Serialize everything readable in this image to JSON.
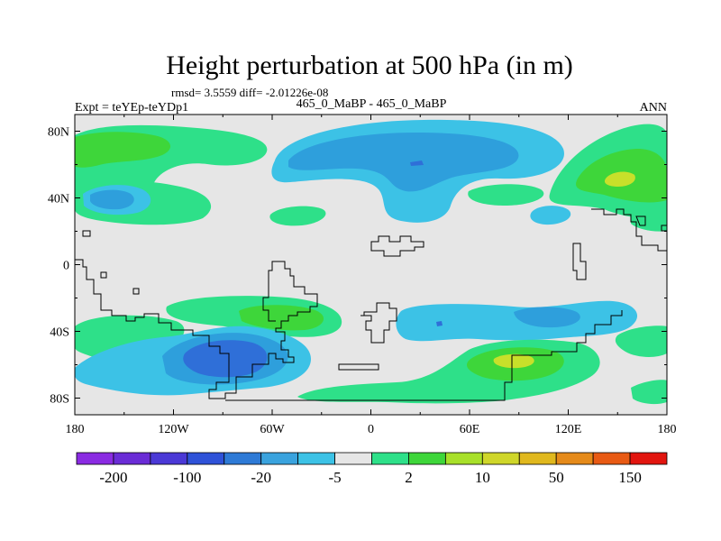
{
  "chart_data": {
    "type": "contour-map",
    "title": "Height perturbation at 500 hPa (in m)",
    "stats": "rmsd= 3.5559  diff= -2.01226e-08",
    "left_label": "Expt = teYEp-teYDp1",
    "center_label": "465_0_MaBP - 465_0_MaBP",
    "right_label": "ANN",
    "x_ticks": [
      "180",
      "120W",
      "60W",
      "0",
      "60E",
      "120E",
      "180"
    ],
    "y_ticks": [
      "80N",
      "40N",
      "0",
      "40S",
      "80S"
    ],
    "lon_range": [
      -180,
      180
    ],
    "lat_range": [
      -90,
      90
    ],
    "colorbar_labels": [
      "-200",
      "-100",
      "-20",
      "-5",
      "2",
      "10",
      "50",
      "150"
    ],
    "colorbar_colors": [
      "#8a2be2",
      "#6a2cd6",
      "#4b39d6",
      "#2f52d8",
      "#2e7ad6",
      "#3aa3de",
      "#3cc2e6",
      "#e6e6e6",
      "#2ee089",
      "#3ed63a",
      "#a8e02a",
      "#cfd62a",
      "#e0b81e",
      "#e58a1a",
      "#e85a14",
      "#e2150f"
    ],
    "contour_colors": {
      "light_blue": "#3cc2e6",
      "mid_blue": "#2e9fdc",
      "dark_blue": "#2f6fd8",
      "green": "#2ee089",
      "bright_green": "#3ed63a",
      "yellow_green": "#c8e02a",
      "background": "#e6e6e6"
    }
  }
}
